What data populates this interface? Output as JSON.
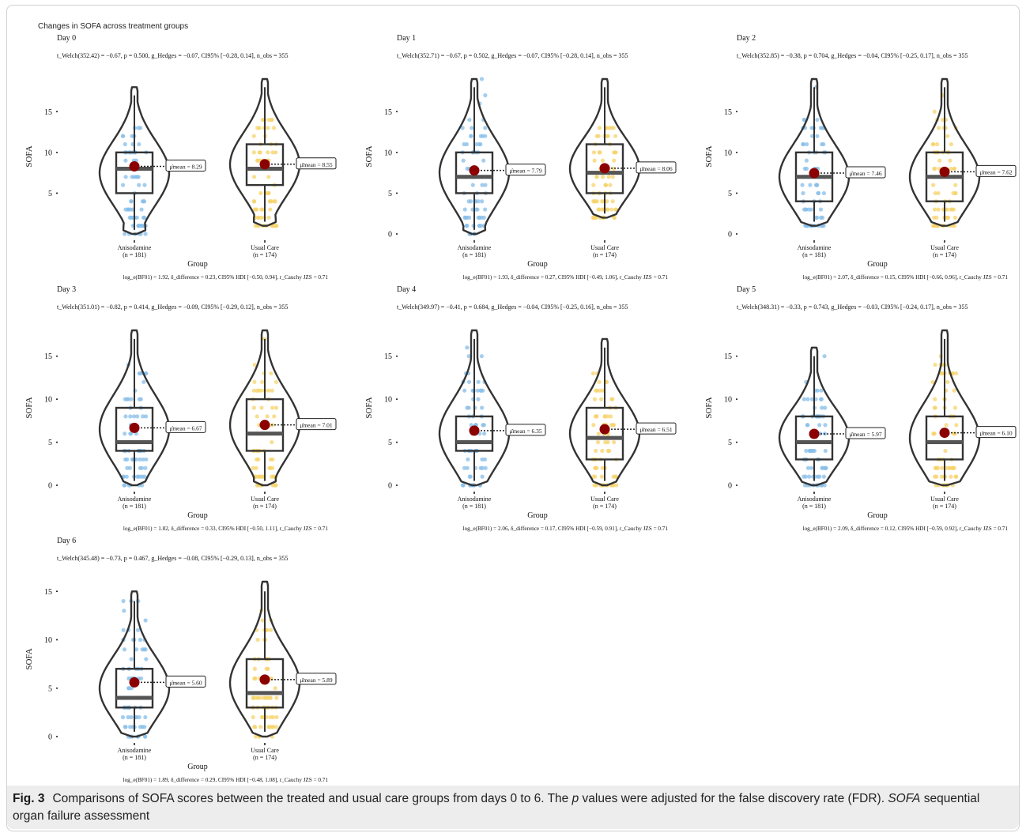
{
  "figure_title": "Changes in SOFA across treatment groups",
  "caption": {
    "label": "Fig. 3",
    "text_before_p": "Comparisons of SOFA scores between the treated and usual care groups from days 0 to 6. The ",
    "p_symbol": "p",
    "text_after_p": " values were adjusted for the false discovery rate (FDR). ",
    "abbr": "SOFA",
    "abbr_def": " sequential organ failure assessment"
  },
  "colors": {
    "anisodamine": "#87bde8",
    "usual_care": "#f5d36b",
    "mean_dot": "#8b0000",
    "outline": "#333333"
  },
  "chart_data": [
    {
      "type": "violin-box",
      "title": "Day 0",
      "subtitle": "t_Welch(352.42) = −0.67, p = 0.500, g_Hedges = −0.07, CI95% [−0.28, 0.14], n_obs = 355",
      "bayes": "log_e(BF01) = 1.92, δ_difference = 0.23, CI95% HDI [−0.50, 0.94], r_Cauchy JZS = 0.71",
      "xlabel": "Group",
      "ylabel": "SOFA",
      "yticks": [
        5,
        10,
        15
      ],
      "ylim": [
        0,
        19
      ],
      "groups": [
        {
          "name": "Anisodamine",
          "n_label": "(n = 181)",
          "mean": 8.29,
          "mean_label": "μ̂mean = 8.29",
          "median": 8,
          "q1": 5,
          "q3": 10,
          "min": 0,
          "max": 18
        },
        {
          "name": "Usual Care",
          "n_label": "(n = 174)",
          "mean": 8.55,
          "mean_label": "μ̂mean = 8.55",
          "median": 8,
          "q1": 6,
          "q3": 11,
          "min": 1,
          "max": 19
        }
      ]
    },
    {
      "type": "violin-box",
      "title": "Day 1",
      "subtitle": "t_Welch(352.71) = −0.67, p = 0.502, g_Hedges = −0.07, CI95% [−0.28, 0.14], n_obs = 355",
      "bayes": "log_e(BF01) = 1.93, δ_difference = 0.27, CI95% HDI [−0.49, 1.06], r_Cauchy JZS = 0.71",
      "xlabel": "Group",
      "ylabel": "SOFA",
      "yticks": [
        0,
        5,
        10,
        15
      ],
      "ylim": [
        0,
        19
      ],
      "groups": [
        {
          "name": "Anisodamine",
          "n_label": "(n = 181)",
          "mean": 7.79,
          "mean_label": "μ̂mean = 7.79",
          "median": 7,
          "q1": 5,
          "q3": 10,
          "min": 0,
          "max": 19
        },
        {
          "name": "Usual Care",
          "n_label": "(n = 174)",
          "mean": 8.06,
          "mean_label": "μ̂mean = 8.06",
          "median": 7.5,
          "q1": 5,
          "q3": 11,
          "min": 2,
          "max": 19
        }
      ]
    },
    {
      "type": "violin-box",
      "title": "Day 2",
      "subtitle": "t_Welch(352.85) = −0.38, p = 0.704, g_Hedges = −0.04, CI95% [−0.25, 0.17], n_obs = 355",
      "bayes": "log_e(BF01) = 2.07, δ_difference = 0.15, CI95% HDI [−0.66, 0.96], r_Cauchy JZS = 0.71",
      "xlabel": "Group",
      "ylabel": "SOFA",
      "yticks": [
        0,
        5,
        10,
        15
      ],
      "ylim": [
        0,
        19
      ],
      "groups": [
        {
          "name": "Anisodamine",
          "n_label": "(n = 181)",
          "mean": 7.46,
          "mean_label": "μ̂mean = 7.46",
          "median": 7,
          "q1": 4,
          "q3": 10,
          "min": 1,
          "max": 19
        },
        {
          "name": "Usual Care",
          "n_label": "(n = 174)",
          "mean": 7.62,
          "mean_label": "μ̂mean = 7.62",
          "median": 7,
          "q1": 4,
          "q3": 10,
          "min": 1,
          "max": 19
        }
      ]
    },
    {
      "type": "violin-box",
      "title": "Day 3",
      "subtitle": "t_Welch(351.01) = −0.82, p = 0.414, g_Hedges = −0.09, CI95% [−0.29, 0.12], n_obs = 355",
      "bayes": "log_e(BF01) = 1.82, δ_difference = 0.33, CI95% HDI [−0.50, 1.11], r_Cauchy JZS = 0.71",
      "xlabel": "Group",
      "ylabel": "SOFA",
      "yticks": [
        0,
        5,
        10,
        15
      ],
      "ylim": [
        0,
        18
      ],
      "groups": [
        {
          "name": "Anisodamine",
          "n_label": "(n = 181)",
          "mean": 6.67,
          "mean_label": "μ̂mean = 6.67",
          "median": 5,
          "q1": 4,
          "q3": 9,
          "min": 0,
          "max": 18
        },
        {
          "name": "Usual Care",
          "n_label": "(n = 174)",
          "mean": 7.01,
          "mean_label": "μ̂mean = 7.01",
          "median": 6,
          "q1": 4,
          "q3": 10,
          "min": 0,
          "max": 18
        }
      ]
    },
    {
      "type": "violin-box",
      "title": "Day 4",
      "subtitle": "t_Welch(349.97) = −0.41, p = 0.684, g_Hedges = −0.04, CI95% [−0.25, 0.16], n_obs = 355",
      "bayes": "log_e(BF01) = 2.06, δ_difference = 0.17, CI95% HDI [−0.59, 0.91], r_Cauchy JZS = 0.71",
      "xlabel": "Group",
      "ylabel": "SOFA",
      "yticks": [
        0,
        5,
        10,
        15
      ],
      "ylim": [
        0,
        18
      ],
      "groups": [
        {
          "name": "Anisodamine",
          "n_label": "(n = 181)",
          "mean": 6.35,
          "mean_label": "μ̂mean = 6.35",
          "median": 5,
          "q1": 4,
          "q3": 8,
          "min": 0,
          "max": 18
        },
        {
          "name": "Usual Care",
          "n_label": "(n = 174)",
          "mean": 6.51,
          "mean_label": "μ̂mean = 6.51",
          "median": 5.5,
          "q1": 3,
          "q3": 9,
          "min": 0,
          "max": 17
        }
      ]
    },
    {
      "type": "violin-box",
      "title": "Day 5",
      "subtitle": "t_Welch(348.31) = −0.33, p = 0.743, g_Hedges = −0.03, CI95% [−0.24, 0.17], n_obs = 355",
      "bayes": "log_e(BF01) = 2.09, δ_difference = 0.12, CI95% HDI [−0.59, 0.92], r_Cauchy JZS = 0.71",
      "xlabel": "Group",
      "ylabel": "SOFA",
      "yticks": [
        0,
        5,
        10,
        15
      ],
      "ylim": [
        0,
        18
      ],
      "groups": [
        {
          "name": "Anisodamine",
          "n_label": "(n = 181)",
          "mean": 5.97,
          "mean_label": "μ̂mean = 5.97",
          "median": 5,
          "q1": 3,
          "q3": 8,
          "min": 0,
          "max": 16
        },
        {
          "name": "Usual Care",
          "n_label": "(n = 174)",
          "mean": 6.1,
          "mean_label": "μ̂mean = 6.10",
          "median": 5,
          "q1": 3,
          "q3": 8,
          "min": 0,
          "max": 18
        }
      ]
    },
    {
      "type": "violin-box",
      "title": "Day 6",
      "subtitle": "t_Welch(345.48) = −0.73, p = 0.467, g_Hedges = −0.08, CI95% [−0.29, 0.13], n_obs = 355",
      "bayes": "log_e(BF01) = 1.89, δ_difference = 0.29, CI95% HDI [−0.48, 1.08], r_Cauchy JZS = 0.71",
      "xlabel": "Group",
      "ylabel": "SOFA",
      "yticks": [
        0,
        5,
        10,
        15
      ],
      "ylim": [
        0,
        16
      ],
      "groups": [
        {
          "name": "Anisodamine",
          "n_label": "(n = 181)",
          "mean": 5.6,
          "mean_label": "μ̂mean = 5.60",
          "median": 4,
          "q1": 3,
          "q3": 7,
          "min": 0,
          "max": 15
        },
        {
          "name": "Usual Care",
          "n_label": "(n = 174)",
          "mean": 5.89,
          "mean_label": "μ̂mean = 5.89",
          "median": 4.5,
          "q1": 3,
          "q3": 8,
          "min": 0,
          "max": 16
        }
      ]
    }
  ]
}
